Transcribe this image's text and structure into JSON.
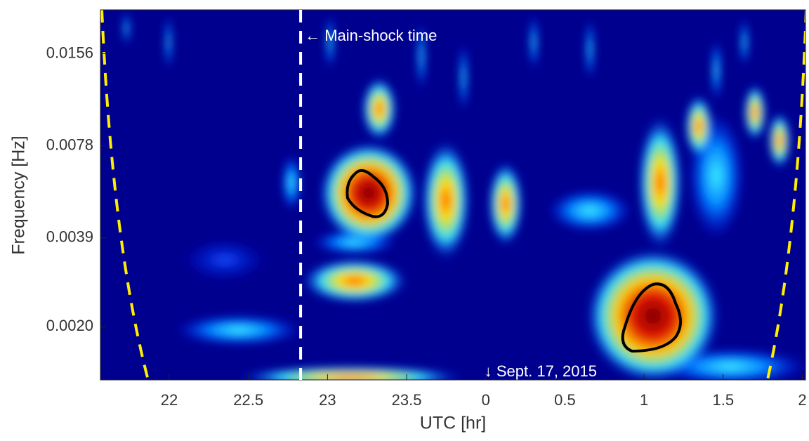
{
  "chart_data": {
    "type": "heatmap",
    "xlabel": "UTC [hr]",
    "ylabel": "Frequency [Hz]",
    "xlim": [
      21.565,
      26.02
    ],
    "xticks": [
      22,
      22.5,
      23,
      23.5,
      {
        "value": 24,
        "label": "0"
      },
      {
        "value": 24.5,
        "label": "0.5"
      },
      {
        "value": 25,
        "label": "1"
      },
      {
        "value": 25.5,
        "label": "1.5"
      },
      {
        "value": 26,
        "label": "2"
      }
    ],
    "ylim": [
      0.00134,
      0.0217
    ],
    "yscale": "log",
    "yticks": [
      {
        "value": 0.002,
        "label": "0.0020"
      },
      0.0039,
      0.0078,
      0.0156
    ],
    "mainshock_x": 22.83,
    "annotations": [
      "← Main-shock time",
      "↓ Sept. 17, 2015"
    ]
  }
}
